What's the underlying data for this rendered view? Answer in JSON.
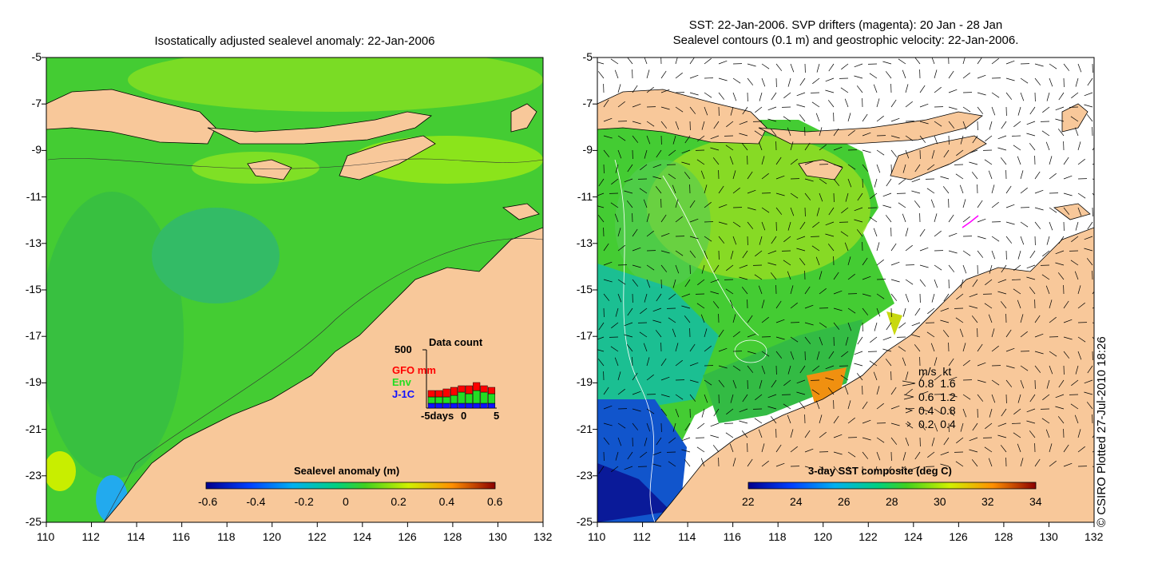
{
  "left_panel": {
    "title": "Isostatically adjusted sealevel anomaly: 22-Jan-2006",
    "colorbar": {
      "label": "Sealevel anomaly (m)",
      "ticks": [
        "-0.6",
        "-0.4",
        "-0.2",
        "0",
        "0.2",
        "0.4",
        "0.6"
      ]
    },
    "data_count": {
      "title": "Data count",
      "ymax_label": "500",
      "series": [
        "GFO mm",
        "Env",
        "J-1C"
      ],
      "series_colors": [
        "#ff0000",
        "#22dd22",
        "#1010ff"
      ],
      "xaxis_labels": [
        "-5days",
        "0",
        "5"
      ]
    }
  },
  "right_panel": {
    "title_line1": "SST: 22-Jan-2006. SVP drifters (magenta): 20 Jan - 28 Jan",
    "title_line2": "Sealevel contours (0.1 m) and geostrophic velocity: 22-Jan-2006.",
    "colorbar": {
      "label": "3-day SST composite (deg C)",
      "ticks": [
        "22",
        "24",
        "26",
        "28",
        "30",
        "32",
        "34"
      ]
    },
    "velocity_legend": {
      "header": "m/s  kt",
      "rows": [
        "0.8  1.6",
        "0.6  1.2",
        "0.4  0.8",
        "0.2  0.4"
      ]
    }
  },
  "axes": {
    "x_ticks": [
      "110",
      "112",
      "114",
      "116",
      "118",
      "120",
      "122",
      "124",
      "126",
      "128",
      "130",
      "132"
    ],
    "y_ticks": [
      "-5",
      "-7",
      "-9",
      "-11",
      "-13",
      "-15",
      "-17",
      "-19",
      "-21",
      "-23",
      "-25"
    ]
  },
  "credit": "© CSIRO Plotted 27-Jul-2010 18:26",
  "colors": {
    "land": "#f8c89a",
    "ocean_green": "#44cc33",
    "ocean_bright": "#99ee11",
    "white": "#ffffff"
  }
}
